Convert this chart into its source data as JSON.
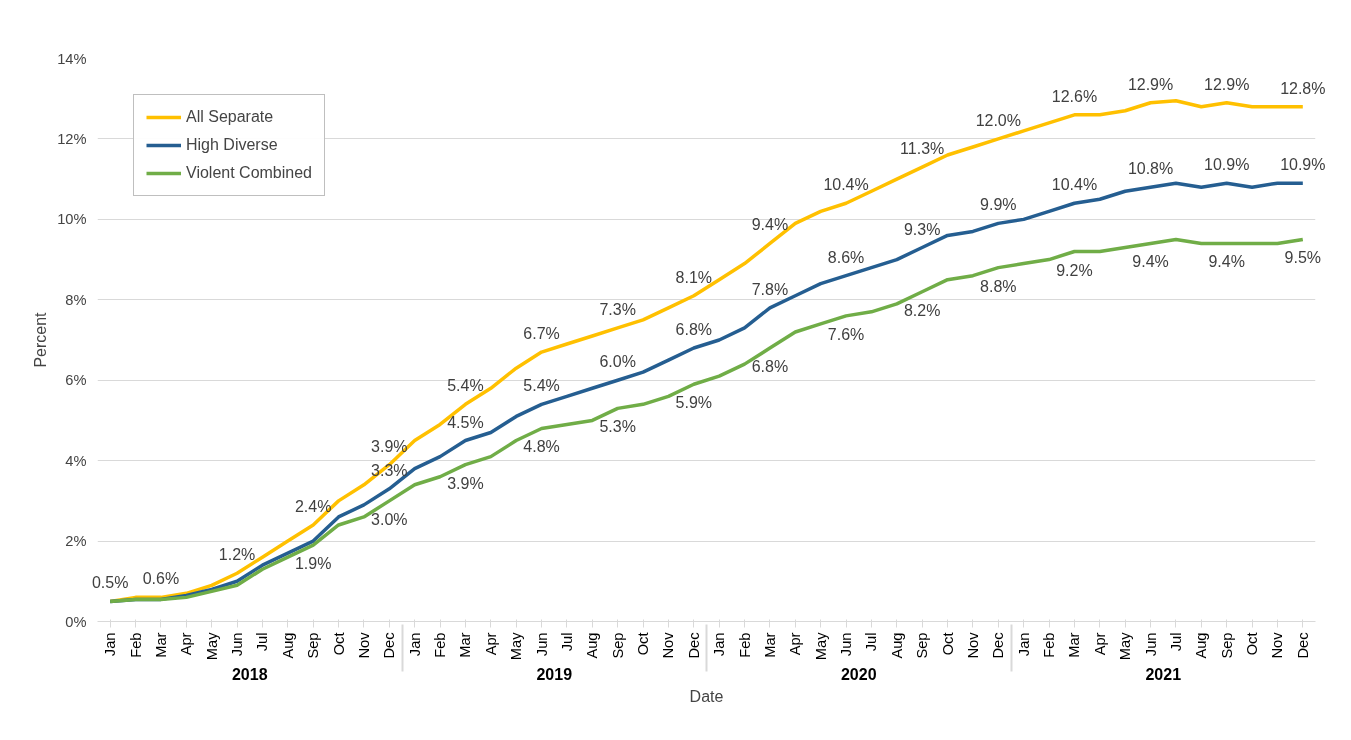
{
  "chart_data": {
    "type": "line",
    "xlabel": "Date",
    "ylabel": "Percent",
    "categories": [
      "Jan",
      "Feb",
      "Mar",
      "Apr",
      "May",
      "Jun",
      "Jul",
      "Aug",
      "Sep",
      "Oct",
      "Nov",
      "Dec",
      "Jan",
      "Feb",
      "Mar",
      "Apr",
      "May",
      "Jun",
      "Jul",
      "Aug",
      "Sep",
      "Oct",
      "Nov",
      "Dec",
      "Jan",
      "Feb",
      "Mar",
      "Apr",
      "May",
      "Jun",
      "Jul",
      "Aug",
      "Sep",
      "Oct",
      "Nov",
      "Dec",
      "Jan",
      "Feb",
      "Mar",
      "Apr",
      "May",
      "Jun",
      "Jul",
      "Aug",
      "Sep",
      "Oct",
      "Nov",
      "Dec"
    ],
    "annotations": [
      "2018",
      "2019",
      "2020",
      "2021"
    ],
    "ylim": [
      0,
      14
    ],
    "yticks": [
      {
        "value": 0,
        "label": "0%"
      },
      {
        "value": 2,
        "label": "2%"
      },
      {
        "value": 4,
        "label": "4%"
      },
      {
        "value": 6,
        "label": "6%"
      },
      {
        "value": 8,
        "label": "8%"
      },
      {
        "value": 10,
        "label": "10%"
      },
      {
        "value": 12,
        "label": "12%"
      },
      {
        "value": 14,
        "label": "14%"
      }
    ],
    "grid": "y",
    "legend": "top left",
    "marker": "none",
    "line_style": "solid",
    "series": [
      {
        "name": "All Separate",
        "color": "#ffc000",
        "values": [
          0.5,
          0.6,
          0.6,
          0.7,
          0.9,
          1.2,
          1.6,
          2.0,
          2.4,
          3.0,
          3.4,
          3.9,
          4.5,
          4.9,
          5.4,
          5.8,
          6.3,
          6.7,
          6.9,
          7.1,
          7.3,
          7.5,
          7.8,
          8.1,
          8.5,
          8.9,
          9.4,
          9.9,
          10.2,
          10.4,
          10.7,
          11.0,
          11.3,
          11.6,
          11.8,
          12.0,
          12.2,
          12.4,
          12.6,
          12.6,
          12.7,
          12.9,
          12.95,
          12.8,
          12.9,
          12.8,
          12.8,
          12.8
        ],
        "value_labels": [
          "0.5%",
          null,
          "0.6%",
          null,
          null,
          "1.2%",
          null,
          null,
          "2.4%",
          null,
          null,
          "3.9%",
          null,
          null,
          "5.4%",
          null,
          null,
          "6.7%",
          null,
          null,
          "7.3%",
          null,
          null,
          "8.1%",
          null,
          null,
          "9.4%",
          null,
          null,
          "10.4%",
          null,
          null,
          "11.3%",
          null,
          null,
          "12.0%",
          null,
          null,
          "12.6%",
          null,
          null,
          "12.9%",
          null,
          null,
          "12.9%",
          null,
          null,
          "12.8%"
        ]
      },
      {
        "name": "High Diverse",
        "color": "#255e91",
        "values": [
          0.5,
          0.55,
          0.55,
          0.65,
          0.8,
          1.0,
          1.4,
          1.7,
          2.0,
          2.6,
          2.9,
          3.3,
          3.8,
          4.1,
          4.5,
          4.7,
          5.1,
          5.4,
          5.6,
          5.8,
          6.0,
          6.2,
          6.5,
          6.8,
          7.0,
          7.3,
          7.8,
          8.1,
          8.4,
          8.6,
          8.8,
          9.0,
          9.3,
          9.6,
          9.7,
          9.9,
          10.0,
          10.2,
          10.4,
          10.5,
          10.7,
          10.8,
          10.9,
          10.8,
          10.9,
          10.8,
          10.9,
          10.9
        ],
        "value_labels": [
          null,
          null,
          null,
          null,
          null,
          null,
          null,
          null,
          null,
          null,
          null,
          "3.3%",
          null,
          null,
          "4.5%",
          null,
          null,
          "5.4%",
          null,
          null,
          "6.0%",
          null,
          null,
          "6.8%",
          null,
          null,
          "7.8%",
          null,
          null,
          "8.6%",
          null,
          null,
          "9.3%",
          null,
          null,
          "9.9%",
          null,
          null,
          "10.4%",
          null,
          null,
          "10.8%",
          null,
          null,
          "10.9%",
          null,
          null,
          "10.9%"
        ]
      },
      {
        "name": "Violent Combined",
        "color": "#70ad47",
        "values": [
          0.5,
          0.55,
          0.55,
          0.6,
          0.75,
          0.9,
          1.3,
          1.6,
          1.9,
          2.4,
          2.6,
          3.0,
          3.4,
          3.6,
          3.9,
          4.1,
          4.5,
          4.8,
          4.9,
          5.0,
          5.3,
          5.4,
          5.6,
          5.9,
          6.1,
          6.4,
          6.8,
          7.2,
          7.4,
          7.6,
          7.7,
          7.9,
          8.2,
          8.5,
          8.6,
          8.8,
          8.9,
          9.0,
          9.2,
          9.2,
          9.3,
          9.4,
          9.5,
          9.4,
          9.4,
          9.4,
          9.4,
          9.5
        ],
        "value_labels": [
          null,
          null,
          null,
          null,
          null,
          null,
          null,
          null,
          "1.9%",
          null,
          null,
          "3.0%",
          null,
          null,
          "3.9%",
          null,
          null,
          "4.8%",
          null,
          null,
          "5.3%",
          null,
          null,
          "5.9%",
          null,
          null,
          "6.8%",
          null,
          null,
          "7.6%",
          null,
          null,
          "8.2%",
          null,
          null,
          "8.8%",
          null,
          null,
          "9.2%",
          null,
          null,
          "9.4%",
          null,
          null,
          "9.4%",
          null,
          null,
          "9.5%"
        ]
      }
    ]
  }
}
